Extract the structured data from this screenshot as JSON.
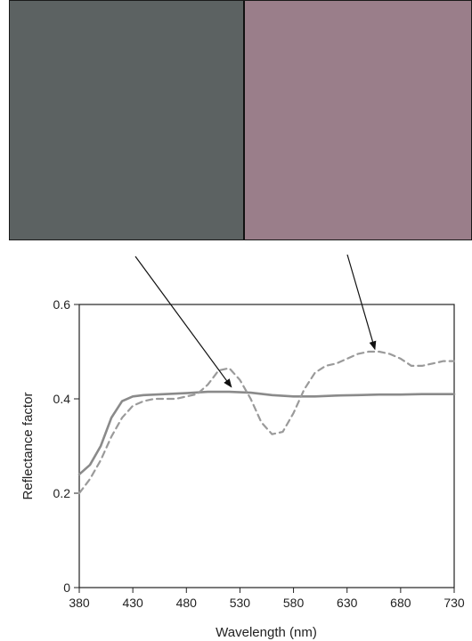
{
  "swatches": {
    "left_color": "#5c6262",
    "right_color": "#9a7e8a"
  },
  "chart_data": {
    "type": "line",
    "title": "",
    "xlabel": "Wavelength (nm)",
    "ylabel": "Reflectance factor",
    "xlim": [
      380,
      730
    ],
    "ylim": [
      0,
      0.6
    ],
    "xticks": [
      "380",
      "430",
      "480",
      "530",
      "580",
      "630",
      "680",
      "730"
    ],
    "yticks": [
      "0",
      "0.2",
      "0.4",
      "0.6"
    ],
    "grid": false,
    "series": [
      {
        "style": "solid",
        "color": "#8a8a8a",
        "x": [
          380,
          390,
          400,
          410,
          420,
          430,
          440,
          460,
          480,
          500,
          520,
          540,
          560,
          580,
          600,
          620,
          640,
          660,
          680,
          700,
          720,
          730
        ],
        "y": [
          0.24,
          0.26,
          0.3,
          0.36,
          0.395,
          0.405,
          0.408,
          0.41,
          0.412,
          0.415,
          0.415,
          0.413,
          0.408,
          0.405,
          0.405,
          0.407,
          0.408,
          0.409,
          0.409,
          0.41,
          0.41,
          0.41
        ]
      },
      {
        "style": "dashed",
        "color": "#9a9a9a",
        "x": [
          380,
          390,
          400,
          410,
          420,
          430,
          440,
          450,
          460,
          470,
          480,
          490,
          500,
          510,
          520,
          530,
          540,
          550,
          560,
          570,
          580,
          590,
          600,
          610,
          620,
          630,
          640,
          650,
          660,
          670,
          680,
          690,
          700,
          710,
          720,
          730
        ],
        "y": [
          0.2,
          0.23,
          0.27,
          0.32,
          0.36,
          0.385,
          0.395,
          0.4,
          0.4,
          0.4,
          0.405,
          0.41,
          0.43,
          0.46,
          0.465,
          0.44,
          0.4,
          0.35,
          0.325,
          0.33,
          0.37,
          0.42,
          0.455,
          0.47,
          0.475,
          0.485,
          0.495,
          0.5,
          0.5,
          0.495,
          0.485,
          0.47,
          0.47,
          0.475,
          0.48,
          0.48
        ]
      }
    ],
    "annotations": [
      {
        "type": "arrow",
        "points_to_series": 0,
        "from": "left swatch"
      },
      {
        "type": "arrow",
        "points_to_series": 1,
        "from": "right swatch"
      }
    ]
  }
}
